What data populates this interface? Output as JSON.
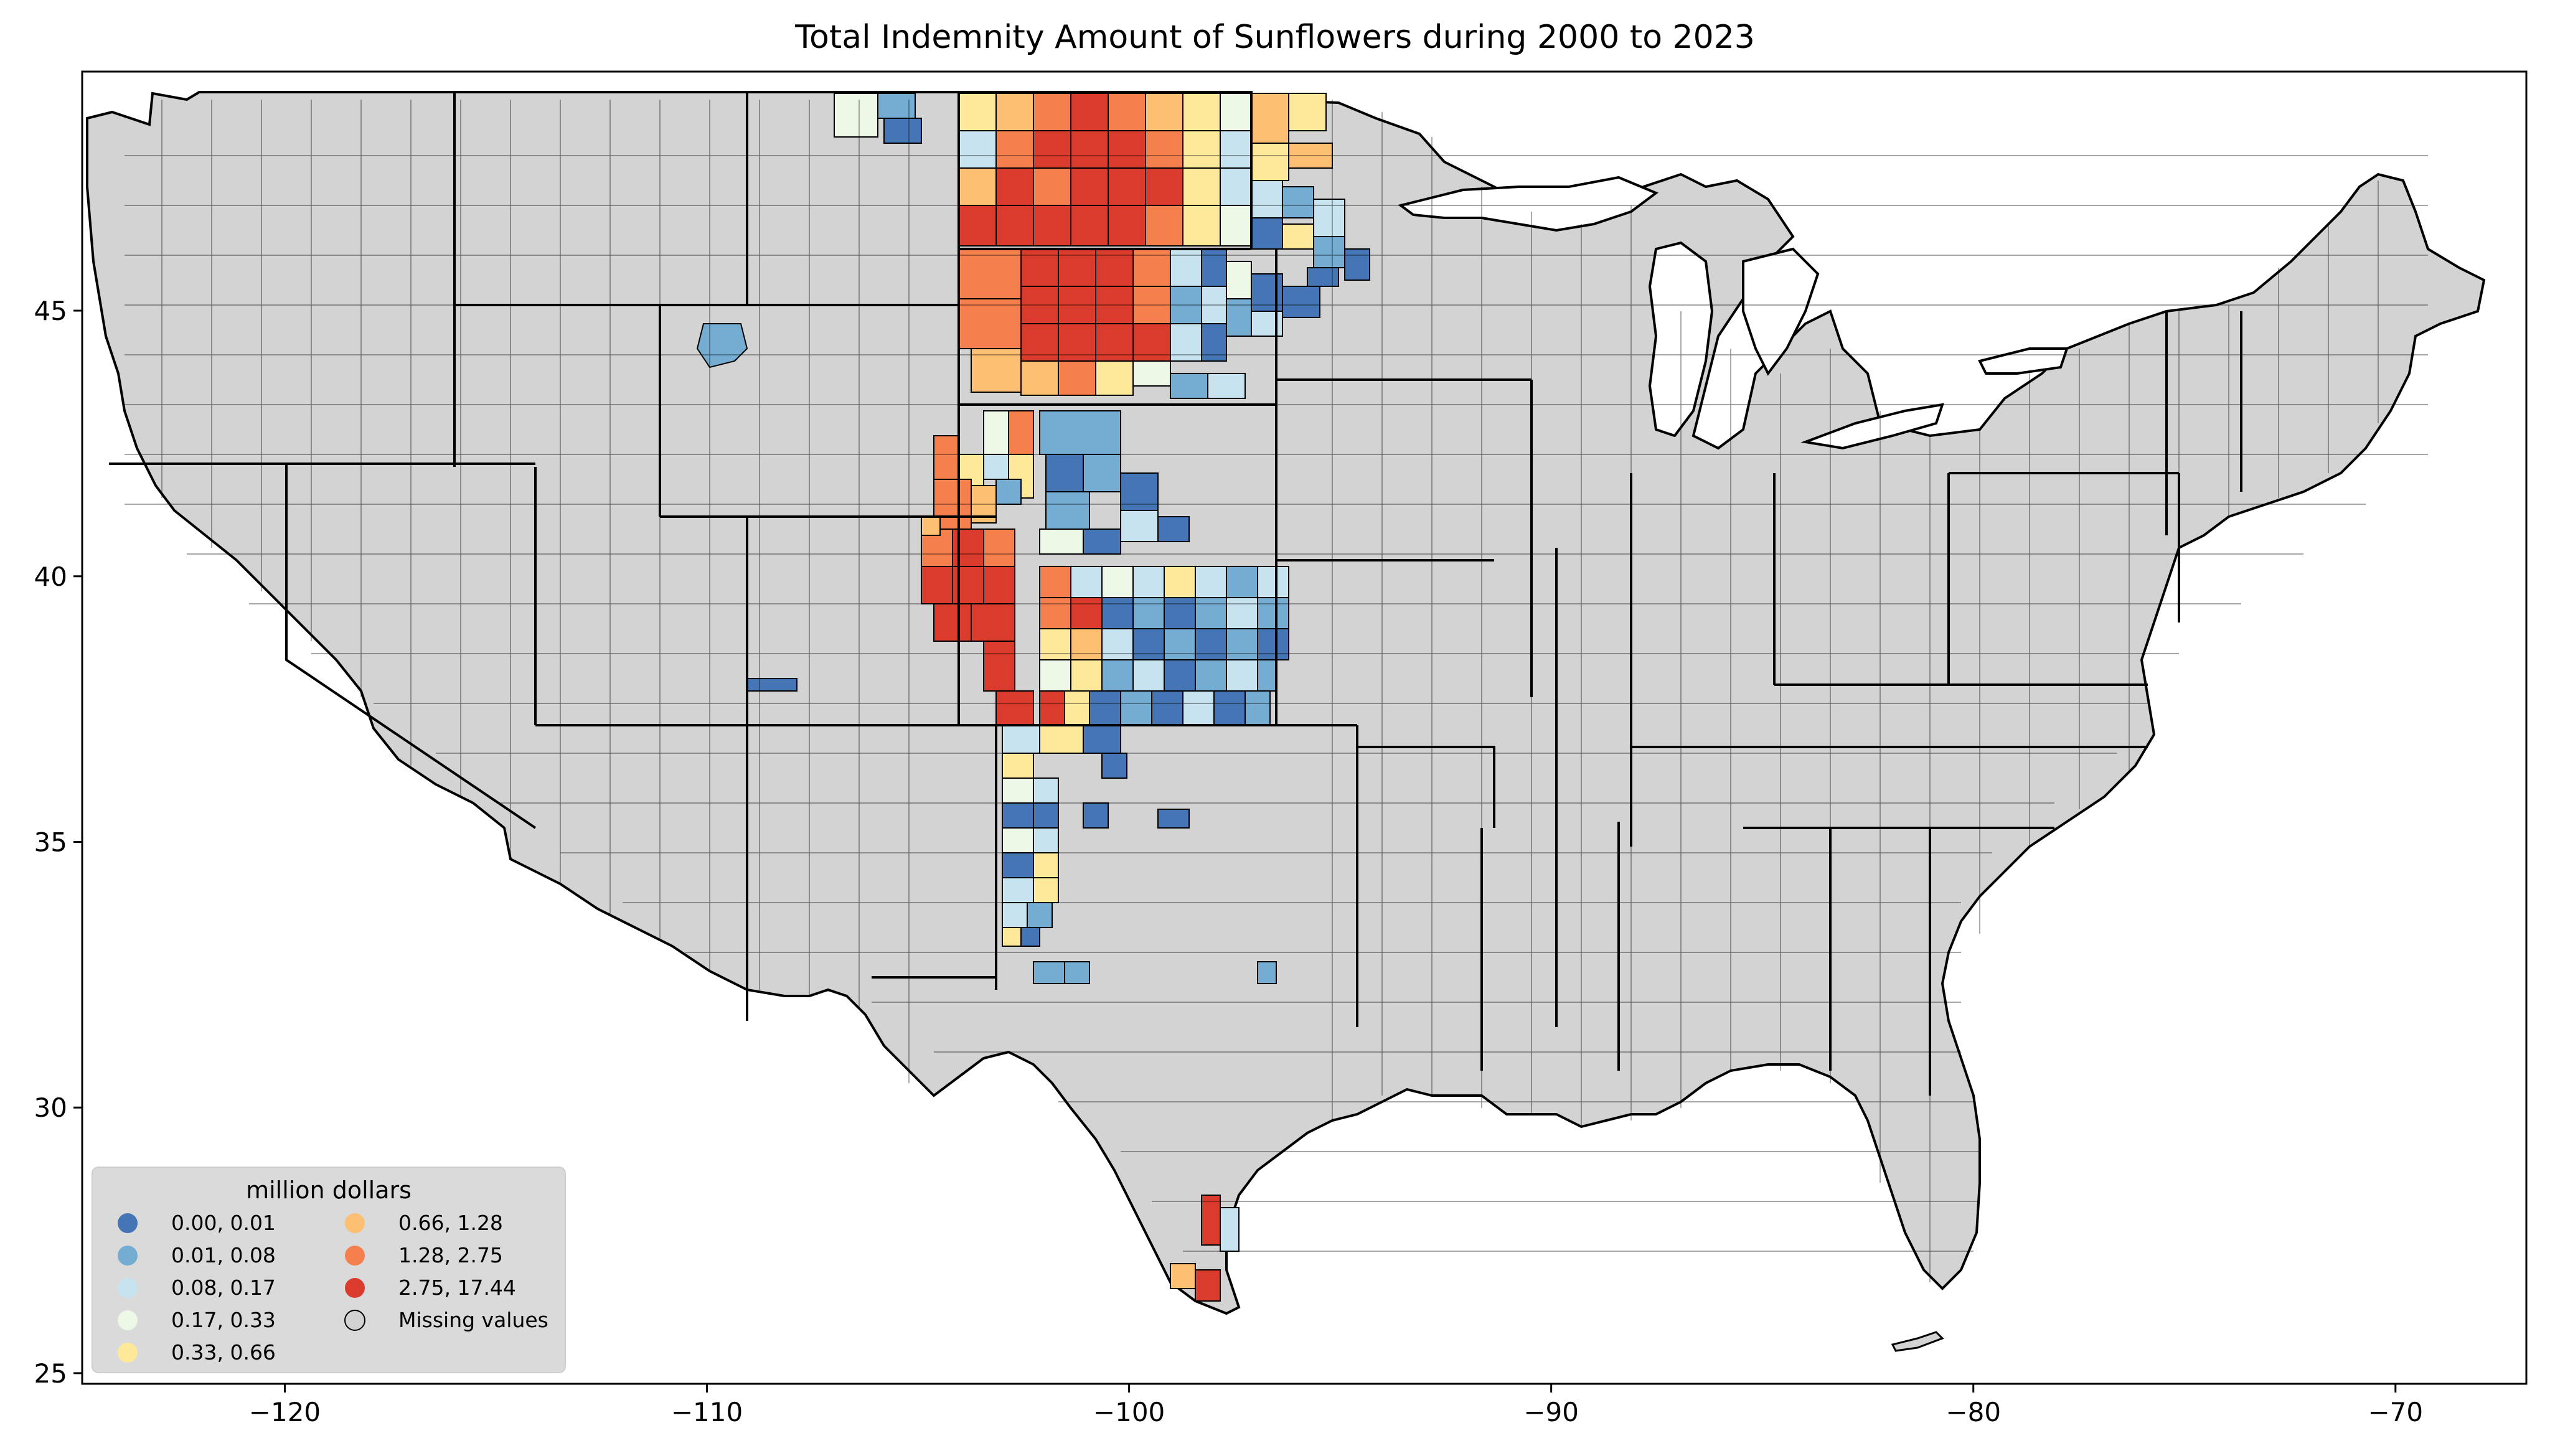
{
  "title": "Total Indemnity Amount of Sunflowers during 2000 to 2023",
  "axes": {
    "x_ticks": [
      {
        "value": -120,
        "label": "−120"
      },
      {
        "value": -110,
        "label": "−110"
      },
      {
        "value": -100,
        "label": "−100"
      },
      {
        "value": -90,
        "label": "−90"
      },
      {
        "value": -80,
        "label": "−80"
      },
      {
        "value": -70,
        "label": "−70"
      }
    ],
    "y_ticks": [
      {
        "value": 25,
        "label": "25"
      },
      {
        "value": 30,
        "label": "30"
      },
      {
        "value": 35,
        "label": "35"
      },
      {
        "value": 40,
        "label": "40"
      },
      {
        "value": 45,
        "label": "45"
      }
    ],
    "xlim": [
      -124.8,
      -66.9
    ],
    "ylim": [
      24.8,
      49.5
    ]
  },
  "colors": {
    "land": "#d3d3d3",
    "c0": "#4575b4",
    "c1": "#74add1",
    "c2": "#c6e3ef",
    "c3": "#eef8e6",
    "c4": "#fee99a",
    "c5": "#fdbf71",
    "c6": "#f67f4e",
    "c7": "#da3b2d"
  },
  "legend": {
    "title": "million dollars",
    "items": [
      {
        "label": "0.00,  0.01",
        "color": "#4575b4"
      },
      {
        "label": "0.01,  0.08",
        "color": "#74add1"
      },
      {
        "label": "0.08,  0.17",
        "color": "#c6e3ef"
      },
      {
        "label": "0.17,  0.33",
        "color": "#eef8e6"
      },
      {
        "label": "0.33,  0.66",
        "color": "#fee99a"
      },
      {
        "label": "0.66,  1.28",
        "color": "#fdbf71"
      },
      {
        "label": "1.28,  2.75",
        "color": "#f67f4e"
      },
      {
        "label": "2.75, 17.44",
        "color": "#da3b2d"
      },
      {
        "label": "Missing values",
        "color": "#d3d3d3"
      }
    ]
  }
}
